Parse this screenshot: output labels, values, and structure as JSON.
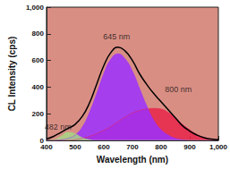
{
  "chart_data": {
    "type": "line",
    "xlabel": "Wavelength (nm)",
    "ylabel": "CL Intensity (cps)",
    "x": [
      400,
      425,
      450,
      475,
      500,
      525,
      550,
      575,
      600,
      625,
      650,
      675,
      700,
      725,
      750,
      775,
      800,
      825,
      850,
      875,
      900,
      925,
      950,
      975,
      1000
    ],
    "series": [
      {
        "type": "area",
        "color": "#e8254a",
        "values": [
          0,
          0,
          0,
          0,
          5,
          15,
          30,
          50,
          75,
          105,
          140,
          175,
          205,
          225,
          235,
          240,
          235,
          210,
          170,
          120,
          80,
          45,
          22,
          10,
          4
        ]
      },
      {
        "type": "area",
        "color": "#9b30ff",
        "values": [
          0,
          0,
          5,
          15,
          40,
          100,
          210,
          350,
          500,
          610,
          650,
          610,
          520,
          390,
          260,
          150,
          80,
          40,
          15,
          5,
          0,
          0,
          0,
          0,
          0
        ]
      },
      {
        "type": "area",
        "color": "#a6d785",
        "values": [
          0,
          5,
          30,
          60,
          50,
          20,
          5,
          0,
          0,
          0,
          0,
          0,
          0,
          0,
          0,
          0,
          0,
          0,
          0,
          0,
          0,
          0,
          0,
          0,
          0
        ]
      },
      {
        "type": "line",
        "color": "#000000",
        "values": [
          10,
          30,
          60,
          90,
          120,
          180,
          280,
          420,
          560,
          660,
          700,
          670,
          600,
          500,
          420,
          350,
          290,
          230,
          170,
          110,
          70,
          40,
          20,
          10,
          5
        ]
      }
    ],
    "xlim": [
      400,
      1000
    ],
    "xticks": [
      400,
      500,
      600,
      700,
      800,
      900,
      1000
    ],
    "ylim": [
      0,
      1000
    ],
    "yticks": [
      0,
      200,
      400,
      600,
      800,
      1000
    ],
    "annotations": [
      {
        "text": "645 nm",
        "x": 645,
        "y": 780
      },
      {
        "text": "482 nm",
        "x": 440,
        "y": 100
      },
      {
        "text": "800 nm",
        "x": 860,
        "y": 380
      }
    ]
  }
}
